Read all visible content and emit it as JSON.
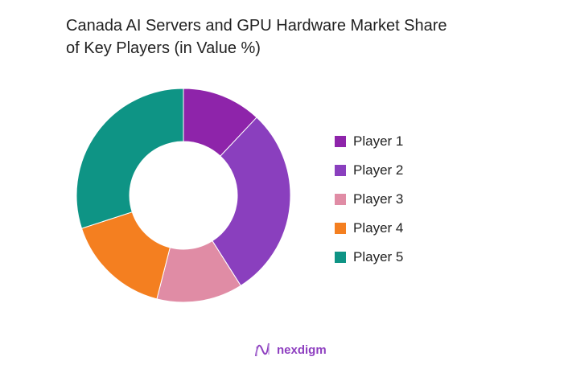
{
  "chart_data": {
    "type": "pie",
    "variant": "donut",
    "title": "Canada AI Servers and GPU Hardware Market Share of Key Players (in Value %)",
    "title_lines": [
      "Canada AI Servers and GPU Hardware Market Share",
      "of Key Players (in Value %)"
    ],
    "categories": [
      "Player 1",
      "Player 2",
      "Player 3",
      "Player 4",
      "Player 5"
    ],
    "values": [
      12,
      29,
      13,
      16,
      30
    ],
    "colors": [
      "#8E24AA",
      "#8A3FBE",
      "#E08CA5",
      "#F47F20",
      "#0E9485"
    ],
    "legend_position": "right"
  },
  "branding": {
    "logo_text": "nexdigm",
    "color": "#8E3FC0"
  }
}
